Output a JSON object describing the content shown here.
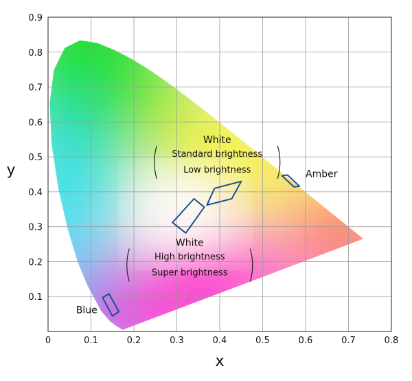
{
  "chart_data": {
    "type": "scatter",
    "title": "",
    "xlabel": "x",
    "ylabel": "y",
    "xlim": [
      0,
      0.8
    ],
    "ylim": [
      0,
      0.9
    ],
    "grid": true,
    "x_ticks": [
      "0",
      "0.1",
      "0.2",
      "0.3",
      "0.4",
      "0.5",
      "0.6",
      "0.7",
      "0.8"
    ],
    "y_ticks": [
      "0.1",
      "0.2",
      "0.3",
      "0.4",
      "0.5",
      "0.6",
      "0.7",
      "0.8",
      "0.9"
    ],
    "gamut_colors": {
      "green": "#22e02a",
      "cyan": "#22dcef",
      "blue": "#2a22ff",
      "magenta": "#ff10c8",
      "red": "#ff1a12",
      "yellow": "#f5f21a",
      "white": "#ffffff"
    },
    "gamut_boundary": [
      [
        0.1741,
        0.005
      ],
      [
        0.1566,
        0.0177
      ],
      [
        0.144,
        0.0297
      ],
      [
        0.1241,
        0.0578
      ],
      [
        0.0913,
        0.1327
      ],
      [
        0.0687,
        0.2007
      ],
      [
        0.0454,
        0.295
      ],
      [
        0.0235,
        0.4127
      ],
      [
        0.0082,
        0.5384
      ],
      [
        0.0039,
        0.6548
      ],
      [
        0.0139,
        0.7502
      ],
      [
        0.0389,
        0.812
      ],
      [
        0.0743,
        0.8338
      ],
      [
        0.1142,
        0.8262
      ],
      [
        0.1547,
        0.8059
      ],
      [
        0.1929,
        0.7816
      ],
      [
        0.2296,
        0.7543
      ],
      [
        0.2658,
        0.7243
      ],
      [
        0.3016,
        0.6923
      ],
      [
        0.3373,
        0.6589
      ],
      [
        0.3731,
        0.6245
      ],
      [
        0.4087,
        0.5896
      ],
      [
        0.4441,
        0.5547
      ],
      [
        0.4788,
        0.5202
      ],
      [
        0.5125,
        0.4866
      ],
      [
        0.5448,
        0.4544
      ],
      [
        0.5752,
        0.4242
      ],
      [
        0.6029,
        0.3965
      ],
      [
        0.627,
        0.3725
      ],
      [
        0.6482,
        0.3514
      ],
      [
        0.6658,
        0.334
      ],
      [
        0.6801,
        0.3197
      ],
      [
        0.6915,
        0.3083
      ],
      [
        0.7006,
        0.2993
      ],
      [
        0.7347,
        0.2653
      ]
    ],
    "regions": [
      {
        "name": "Blue",
        "polygon": [
          [
            0.127,
            0.097
          ],
          [
            0.142,
            0.108
          ],
          [
            0.165,
            0.057
          ],
          [
            0.15,
            0.044
          ]
        ]
      },
      {
        "name": "Amber",
        "polygon": [
          [
            0.545,
            0.446
          ],
          [
            0.558,
            0.448
          ],
          [
            0.586,
            0.416
          ],
          [
            0.573,
            0.414
          ]
        ]
      },
      {
        "name": "White high brightness",
        "polygon": [
          [
            0.29,
            0.312
          ],
          [
            0.34,
            0.38
          ],
          [
            0.364,
            0.356
          ],
          [
            0.321,
            0.282
          ]
        ]
      },
      {
        "name": "White standard brightness",
        "polygon": [
          [
            0.388,
            0.41
          ],
          [
            0.45,
            0.43
          ],
          [
            0.428,
            0.38
          ],
          [
            0.37,
            0.362
          ]
        ]
      }
    ],
    "annotations": {
      "white_upper": {
        "title": "White",
        "lines": [
          "Standard brightness",
          "Low brightness"
        ],
        "anchor": [
          0.394,
          0.54
        ]
      },
      "white_lower": {
        "title": "White",
        "lines": [
          "High brightness",
          "Super brightness"
        ],
        "anchor": [
          0.33,
          0.245
        ]
      },
      "amber": {
        "label": "Amber",
        "anchor": [
          0.6,
          0.442
        ]
      },
      "blue": {
        "label": "Blue",
        "anchor": [
          0.09,
          0.052
        ]
      }
    }
  }
}
